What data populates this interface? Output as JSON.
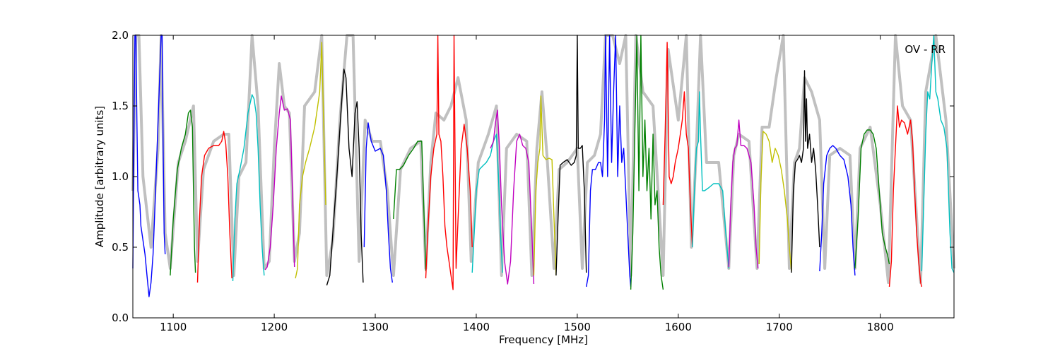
{
  "chart_data": {
    "type": "line",
    "title": "",
    "xlabel": "Frequency [MHz]",
    "ylabel": "Amplitude [arbitrary units]",
    "xlim": [
      1060,
      1873
    ],
    "ylim": [
      0.0,
      2.0
    ],
    "xticks": [
      1100,
      1200,
      1300,
      1400,
      1500,
      1600,
      1700,
      1800
    ],
    "yticks": [
      0.0,
      0.5,
      1.0,
      1.5,
      2.0
    ],
    "xtick_labels": [
      "1100",
      "1200",
      "1300",
      "1400",
      "1500",
      "1600",
      "1700",
      "1800"
    ],
    "ytick_labels": [
      "0.0",
      "0.5",
      "1.0",
      "1.5",
      "2.0"
    ],
    "annotation": "OV - RR",
    "annotation_position": "top-right",
    "grid": false,
    "background_color": "#c0c0c0",
    "background_envelope": [
      [
        1060,
        0.9
      ],
      [
        1063,
        2.0
      ],
      [
        1066,
        2.0
      ],
      [
        1070,
        1.0
      ],
      [
        1078,
        0.5
      ],
      [
        1085,
        1.2
      ],
      [
        1088,
        2.0
      ],
      [
        1092,
        0.6
      ],
      [
        1097,
        0.35
      ],
      [
        1105,
        1.1
      ],
      [
        1112,
        1.25
      ],
      [
        1120,
        1.5
      ],
      [
        1124,
        0.4
      ],
      [
        1130,
        1.05
      ],
      [
        1140,
        1.25
      ],
      [
        1150,
        1.3
      ],
      [
        1155,
        1.3
      ],
      [
        1160,
        0.3
      ],
      [
        1165,
        1.0
      ],
      [
        1172,
        1.1
      ],
      [
        1178,
        2.0
      ],
      [
        1184,
        1.5
      ],
      [
        1190,
        0.35
      ],
      [
        1195,
        0.4
      ],
      [
        1200,
        1.2
      ],
      [
        1205,
        1.8
      ],
      [
        1210,
        1.5
      ],
      [
        1215,
        1.45
      ],
      [
        1220,
        0.4
      ],
      [
        1225,
        0.6
      ],
      [
        1230,
        1.5
      ],
      [
        1240,
        1.6
      ],
      [
        1247,
        2.0
      ],
      [
        1252,
        0.3
      ],
      [
        1258,
        0.55
      ],
      [
        1265,
        1.4
      ],
      [
        1272,
        2.0
      ],
      [
        1278,
        2.0
      ],
      [
        1284,
        0.4
      ],
      [
        1290,
        1.4
      ],
      [
        1297,
        1.25
      ],
      [
        1305,
        1.25
      ],
      [
        1312,
        0.9
      ],
      [
        1318,
        0.3
      ],
      [
        1325,
        1.05
      ],
      [
        1335,
        1.2
      ],
      [
        1345,
        1.25
      ],
      [
        1350,
        0.35
      ],
      [
        1355,
        1.1
      ],
      [
        1360,
        1.45
      ],
      [
        1368,
        1.4
      ],
      [
        1375,
        1.5
      ],
      [
        1382,
        1.7
      ],
      [
        1390,
        1.4
      ],
      [
        1395,
        0.4
      ],
      [
        1402,
        1.1
      ],
      [
        1412,
        1.3
      ],
      [
        1420,
        1.5
      ],
      [
        1425,
        0.3
      ],
      [
        1430,
        1.2
      ],
      [
        1440,
        1.3
      ],
      [
        1450,
        1.25
      ],
      [
        1455,
        0.3
      ],
      [
        1460,
        1.2
      ],
      [
        1465,
        1.6
      ],
      [
        1470,
        1.15
      ],
      [
        1477,
        0.35
      ],
      [
        1482,
        1.05
      ],
      [
        1490,
        1.1
      ],
      [
        1500,
        1.2
      ],
      [
        1505,
        0.35
      ],
      [
        1510,
        1.1
      ],
      [
        1517,
        1.15
      ],
      [
        1523,
        1.3
      ],
      [
        1528,
        2.0
      ],
      [
        1535,
        2.0
      ],
      [
        1542,
        1.8
      ],
      [
        1548,
        2.0
      ],
      [
        1553,
        0.3
      ],
      [
        1558,
        2.0
      ],
      [
        1565,
        1.6
      ],
      [
        1575,
        1.5
      ],
      [
        1585,
        0.3
      ],
      [
        1590,
        1.9
      ],
      [
        1600,
        1.4
      ],
      [
        1608,
        2.0
      ],
      [
        1613,
        0.5
      ],
      [
        1618,
        1.2
      ],
      [
        1622,
        2.0
      ],
      [
        1628,
        1.1
      ],
      [
        1640,
        1.1
      ],
      [
        1650,
        0.35
      ],
      [
        1655,
        1.15
      ],
      [
        1660,
        1.3
      ],
      [
        1670,
        1.25
      ],
      [
        1678,
        0.35
      ],
      [
        1683,
        1.35
      ],
      [
        1690,
        1.35
      ],
      [
        1697,
        1.7
      ],
      [
        1704,
        2.0
      ],
      [
        1710,
        0.35
      ],
      [
        1715,
        1.1
      ],
      [
        1720,
        1.2
      ],
      [
        1725,
        1.7
      ],
      [
        1732,
        1.6
      ],
      [
        1740,
        1.4
      ],
      [
        1745,
        0.35
      ],
      [
        1750,
        1.15
      ],
      [
        1760,
        1.2
      ],
      [
        1770,
        1.15
      ],
      [
        1775,
        0.35
      ],
      [
        1780,
        1.2
      ],
      [
        1790,
        1.35
      ],
      [
        1800,
        0.8
      ],
      [
        1808,
        0.25
      ],
      [
        1815,
        2.0
      ],
      [
        1822,
        1.5
      ],
      [
        1830,
        1.4
      ],
      [
        1840,
        0.25
      ],
      [
        1845,
        1.6
      ],
      [
        1855,
        2.0
      ],
      [
        1865,
        1.4
      ],
      [
        1873,
        0.35
      ]
    ],
    "series": [
      {
        "color": "#0000ff",
        "x": [
          1060,
          1061,
          1062,
          1063,
          1064,
          1065,
          1066,
          1067,
          1068,
          1070,
          1072,
          1074,
          1076,
          1078,
          1080,
          1082,
          1084,
          1086,
          1088,
          1089,
          1090,
          1091,
          1092
        ],
        "y": [
          0.35,
          1.2,
          2.0,
          2.0,
          1.4,
          0.9,
          0.85,
          0.8,
          0.65,
          0.55,
          0.45,
          0.3,
          0.15,
          0.25,
          0.45,
          0.8,
          1.2,
          1.6,
          2.0,
          2.0,
          1.2,
          0.6,
          0.45
        ]
      },
      {
        "color": "#008000",
        "x": [
          1097,
          1100,
          1104,
          1108,
          1112,
          1115,
          1117,
          1119,
          1120,
          1121,
          1122
        ],
        "y": [
          0.3,
          0.7,
          1.05,
          1.2,
          1.3,
          1.45,
          1.47,
          1.35,
          0.9,
          0.5,
          0.32
        ]
      },
      {
        "color": "#ff0000",
        "x": [
          1124,
          1126,
          1128,
          1131,
          1135,
          1140,
          1145,
          1148,
          1150,
          1152,
          1154,
          1156,
          1158
        ],
        "y": [
          0.25,
          0.7,
          1.0,
          1.15,
          1.2,
          1.22,
          1.22,
          1.25,
          1.32,
          1.23,
          1.0,
          0.6,
          0.28
        ]
      },
      {
        "color": "#00c0c0",
        "x": [
          1159,
          1161,
          1163,
          1166,
          1170,
          1174,
          1178,
          1180,
          1182,
          1184,
          1186,
          1188,
          1190
        ],
        "y": [
          0.26,
          0.7,
          0.95,
          1.05,
          1.2,
          1.45,
          1.58,
          1.55,
          1.45,
          1.2,
          0.8,
          0.5,
          0.3
        ]
      },
      {
        "color": "#c000c0",
        "x": [
          1191,
          1193,
          1196,
          1199,
          1202,
          1205,
          1207,
          1210,
          1213,
          1216,
          1218,
          1220
        ],
        "y": [
          0.34,
          0.36,
          0.5,
          0.8,
          1.2,
          1.45,
          1.57,
          1.47,
          1.48,
          1.4,
          0.9,
          0.36
        ]
      },
      {
        "color": "#c0c000",
        "x": [
          1221,
          1223,
          1225,
          1228,
          1231,
          1235,
          1240,
          1243,
          1245,
          1247,
          1249,
          1251
        ],
        "y": [
          0.28,
          0.35,
          0.8,
          1.0,
          1.1,
          1.2,
          1.35,
          1.5,
          1.6,
          1.95,
          1.35,
          0.8
        ]
      },
      {
        "color": "#000000",
        "x": [
          1252,
          1255,
          1258,
          1262,
          1266,
          1269,
          1271,
          1274,
          1277,
          1280,
          1282,
          1284,
          1286,
          1288
        ],
        "y": [
          0.23,
          0.3,
          0.6,
          1.0,
          1.45,
          1.76,
          1.7,
          1.2,
          1.0,
          1.45,
          1.53,
          1.2,
          0.6,
          0.25
        ]
      },
      {
        "color": "#0000ff",
        "x": [
          1289,
          1291,
          1293,
          1296,
          1300,
          1305,
          1308,
          1311,
          1313,
          1315,
          1317
        ],
        "y": [
          0.5,
          1.2,
          1.38,
          1.25,
          1.18,
          1.2,
          1.15,
          0.9,
          0.6,
          0.35,
          0.25
        ]
      },
      {
        "color": "#008000",
        "x": [
          1318,
          1321,
          1324,
          1328,
          1333,
          1338,
          1342,
          1346,
          1348,
          1350
        ],
        "y": [
          0.7,
          1.05,
          1.05,
          1.08,
          1.15,
          1.2,
          1.25,
          1.25,
          0.8,
          0.33
        ]
      },
      {
        "color": "#ff0000",
        "x": [
          1350,
          1352,
          1355,
          1358,
          1361,
          1362,
          1363,
          1365,
          1367,
          1369,
          1371,
          1373,
          1375,
          1377,
          1378,
          1380,
          1382,
          1385,
          1388,
          1391,
          1394,
          1396
        ],
        "y": [
          0.28,
          0.6,
          1.0,
          1.2,
          1.3,
          2.0,
          1.3,
          1.25,
          1.0,
          0.65,
          0.5,
          0.4,
          0.3,
          0.2,
          2.0,
          0.35,
          0.7,
          1.2,
          1.37,
          1.2,
          0.9,
          0.5
        ]
      },
      {
        "color": "#00c0c0",
        "x": [
          1396,
          1398,
          1400,
          1403,
          1407,
          1410,
          1414,
          1417,
          1420,
          1422,
          1424,
          1426
        ],
        "y": [
          0.32,
          0.6,
          0.9,
          1.05,
          1.08,
          1.1,
          1.15,
          1.25,
          1.3,
          1.0,
          0.6,
          0.32
        ]
      },
      {
        "color": "#c000c0",
        "x": [
          1414,
          1417,
          1419,
          1421,
          1423,
          1425,
          1428,
          1431,
          1434,
          1437,
          1440,
          1443,
          1446,
          1449,
          1452,
          1455,
          1457
        ],
        "y": [
          1.2,
          1.25,
          1.38,
          1.47,
          1.2,
          0.8,
          0.4,
          0.24,
          0.4,
          0.9,
          1.25,
          1.3,
          1.22,
          1.2,
          1.1,
          0.6,
          0.24
        ]
      },
      {
        "color": "#c0c000",
        "x": [
          1457,
          1459,
          1461,
          1463,
          1464,
          1466,
          1469,
          1472,
          1475,
          1477,
          1479
        ],
        "y": [
          0.3,
          0.9,
          1.1,
          1.2,
          1.57,
          1.15,
          1.12,
          1.13,
          1.12,
          0.7,
          0.3
        ]
      },
      {
        "color": "#000000",
        "x": [
          1479,
          1481,
          1483,
          1486,
          1490,
          1494,
          1497,
          1499,
          1500,
          1501,
          1503,
          1505,
          1507,
          1509
        ],
        "y": [
          0.3,
          0.7,
          1.08,
          1.1,
          1.12,
          1.08,
          1.1,
          1.15,
          2.0,
          1.2,
          1.2,
          1.22,
          0.9,
          0.32
        ]
      },
      {
        "color": "#0000ff",
        "x": [
          1509,
          1511,
          1513,
          1515,
          1518,
          1521,
          1523,
          1525,
          1527,
          1528,
          1530,
          1532,
          1534,
          1536,
          1538,
          1540,
          1542,
          1544,
          1546,
          1548,
          1550,
          1552,
          1553
        ],
        "y": [
          0.22,
          0.3,
          0.9,
          1.05,
          1.05,
          1.1,
          1.1,
          1.0,
          1.4,
          2.0,
          1.0,
          2.0,
          1.1,
          1.6,
          2.0,
          1.0,
          1.5,
          1.1,
          1.2,
          0.9,
          0.6,
          0.3,
          0.22
        ]
      },
      {
        "color": "#008000",
        "x": [
          1553,
          1555,
          1557,
          1559,
          1561,
          1563,
          1565,
          1567,
          1569,
          1571,
          1573,
          1575,
          1577,
          1579,
          1581,
          1583,
          1585
        ],
        "y": [
          0.2,
          0.6,
          1.3,
          2.0,
          0.9,
          2.0,
          1.0,
          1.4,
          0.9,
          1.2,
          0.7,
          1.3,
          0.8,
          0.9,
          0.5,
          0.3,
          0.2
        ]
      },
      {
        "color": "#ff0000",
        "x": [
          1585,
          1587,
          1589,
          1591,
          1593,
          1595,
          1597,
          1600,
          1602,
          1604,
          1606,
          1608,
          1610,
          1612,
          1614
        ],
        "y": [
          0.8,
          1.3,
          1.95,
          1.0,
          0.95,
          1.0,
          1.1,
          1.2,
          1.3,
          1.4,
          1.6,
          1.3,
          1.2,
          0.8,
          0.5
        ]
      },
      {
        "color": "#00c0c0",
        "x": [
          1614,
          1616,
          1618,
          1620,
          1621,
          1622,
          1624,
          1626,
          1630,
          1635,
          1640,
          1644,
          1647,
          1650
        ],
        "y": [
          0.5,
          0.9,
          1.2,
          1.25,
          1.6,
          1.3,
          0.9,
          0.9,
          0.92,
          0.95,
          0.95,
          0.9,
          0.6,
          0.35
        ]
      },
      {
        "color": "#c000c0",
        "x": [
          1650,
          1652,
          1654,
          1656,
          1658,
          1660,
          1662,
          1665,
          1668,
          1672,
          1675,
          1677,
          1679
        ],
        "y": [
          0.36,
          0.8,
          1.1,
          1.2,
          1.22,
          1.4,
          1.22,
          1.22,
          1.2,
          1.1,
          0.8,
          0.5,
          0.35
        ]
      },
      {
        "color": "#c0c000",
        "x": [
          1680,
          1682,
          1684,
          1687,
          1690,
          1693,
          1696,
          1699,
          1702,
          1705,
          1708,
          1710,
          1712
        ],
        "y": [
          0.38,
          1.0,
          1.32,
          1.3,
          1.25,
          1.1,
          1.2,
          1.15,
          1.05,
          0.9,
          0.7,
          0.5,
          0.33
        ]
      },
      {
        "color": "#000000",
        "x": [
          1712,
          1714,
          1716,
          1718,
          1720,
          1722,
          1724,
          1725,
          1726,
          1727,
          1728,
          1730,
          1732,
          1734,
          1736,
          1738,
          1740
        ],
        "y": [
          0.32,
          0.9,
          1.1,
          1.12,
          1.15,
          1.1,
          1.2,
          1.75,
          1.25,
          1.55,
          1.2,
          1.3,
          1.1,
          1.2,
          1.05,
          0.8,
          0.5
        ]
      },
      {
        "color": "#0000ff",
        "x": [
          1740,
          1742,
          1744,
          1747,
          1750,
          1753,
          1756,
          1760,
          1764,
          1768,
          1771,
          1773,
          1775
        ],
        "y": [
          0.33,
          0.6,
          0.95,
          1.15,
          1.2,
          1.22,
          1.2,
          1.15,
          1.12,
          1.0,
          0.8,
          0.5,
          0.3
        ]
      },
      {
        "color": "#008000",
        "x": [
          1775,
          1778,
          1781,
          1784,
          1787,
          1790,
          1793,
          1796,
          1799,
          1802,
          1805,
          1807,
          1809
        ],
        "y": [
          0.35,
          0.7,
          1.2,
          1.3,
          1.33,
          1.33,
          1.3,
          1.2,
          0.9,
          0.6,
          0.5,
          0.45,
          0.38
        ]
      },
      {
        "color": "#ff0000",
        "x": [
          1809,
          1811,
          1813,
          1815,
          1817,
          1819,
          1821,
          1824,
          1827,
          1830,
          1832,
          1834,
          1836,
          1838,
          1840,
          1841
        ],
        "y": [
          0.22,
          0.4,
          0.9,
          1.2,
          1.5,
          1.35,
          1.4,
          1.38,
          1.3,
          1.4,
          1.25,
          0.9,
          0.6,
          0.4,
          0.25,
          0.22
        ]
      },
      {
        "color": "#00c0c0",
        "x": [
          1841,
          1843,
          1845,
          1847,
          1849,
          1851,
          1853,
          1855,
          1857,
          1860,
          1863,
          1866,
          1869,
          1871,
          1873
        ],
        "y": [
          0.33,
          0.8,
          1.3,
          1.6,
          1.55,
          1.8,
          2.0,
          1.6,
          1.55,
          1.4,
          1.35,
          1.2,
          0.6,
          0.35,
          0.32
        ]
      }
    ]
  }
}
